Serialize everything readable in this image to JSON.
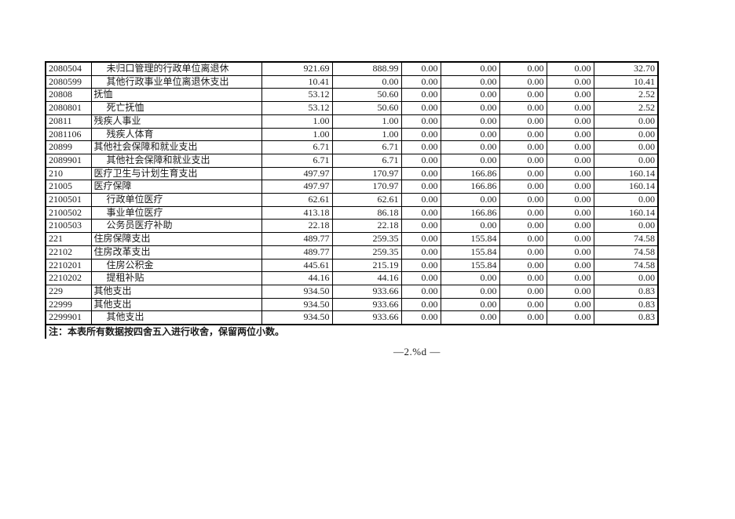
{
  "colors": {
    "background": "#ffffff",
    "border": "#000000",
    "text": "#1a1a1a"
  },
  "table": {
    "rows": [
      {
        "code": "2080504",
        "name": "未归口管理的行政单位离退休",
        "level": 1,
        "values": [
          "921.69",
          "888.99",
          "0.00",
          "0.00",
          "0.00",
          "0.00",
          "32.70"
        ]
      },
      {
        "code": "2080599",
        "name": "其他行政事业单位离退休支出",
        "level": 1,
        "values": [
          "10.41",
          "0.00",
          "0.00",
          "0.00",
          "0.00",
          "0.00",
          "10.41"
        ]
      },
      {
        "code": "20808",
        "name": "抚恤",
        "level": 0,
        "values": [
          "53.12",
          "50.60",
          "0.00",
          "0.00",
          "0.00",
          "0.00",
          "2.52"
        ]
      },
      {
        "code": "2080801",
        "name": "死亡抚恤",
        "level": 1,
        "values": [
          "53.12",
          "50.60",
          "0.00",
          "0.00",
          "0.00",
          "0.00",
          "2.52"
        ]
      },
      {
        "code": "20811",
        "name": "残疾人事业",
        "level": 0,
        "values": [
          "1.00",
          "1.00",
          "0.00",
          "0.00",
          "0.00",
          "0.00",
          "0.00"
        ]
      },
      {
        "code": "2081106",
        "name": "残疾人体育",
        "level": 1,
        "values": [
          "1.00",
          "1.00",
          "0.00",
          "0.00",
          "0.00",
          "0.00",
          "0.00"
        ]
      },
      {
        "code": "20899",
        "name": "其他社会保障和就业支出",
        "level": 0,
        "values": [
          "6.71",
          "6.71",
          "0.00",
          "0.00",
          "0.00",
          "0.00",
          "0.00"
        ]
      },
      {
        "code": "2089901",
        "name": "其他社会保障和就业支出",
        "level": 1,
        "values": [
          "6.71",
          "6.71",
          "0.00",
          "0.00",
          "0.00",
          "0.00",
          "0.00"
        ]
      },
      {
        "code": "210",
        "name": "医疗卫生与计划生育支出",
        "level": 0,
        "values": [
          "497.97",
          "170.97",
          "0.00",
          "166.86",
          "0.00",
          "0.00",
          "160.14"
        ]
      },
      {
        "code": "21005",
        "name": "医疗保障",
        "level": 0,
        "values": [
          "497.97",
          "170.97",
          "0.00",
          "166.86",
          "0.00",
          "0.00",
          "160.14"
        ]
      },
      {
        "code": "2100501",
        "name": "行政单位医疗",
        "level": 1,
        "values": [
          "62.61",
          "62.61",
          "0.00",
          "0.00",
          "0.00",
          "0.00",
          "0.00"
        ]
      },
      {
        "code": "2100502",
        "name": "事业单位医疗",
        "level": 1,
        "values": [
          "413.18",
          "86.18",
          "0.00",
          "166.86",
          "0.00",
          "0.00",
          "160.14"
        ]
      },
      {
        "code": "2100503",
        "name": "公务员医疗补助",
        "level": 1,
        "values": [
          "22.18",
          "22.18",
          "0.00",
          "0.00",
          "0.00",
          "0.00",
          "0.00"
        ]
      },
      {
        "code": "221",
        "name": "住房保障支出",
        "level": 0,
        "values": [
          "489.77",
          "259.35",
          "0.00",
          "155.84",
          "0.00",
          "0.00",
          "74.58"
        ]
      },
      {
        "code": "22102",
        "name": "住房改革支出",
        "level": 0,
        "values": [
          "489.77",
          "259.35",
          "0.00",
          "155.84",
          "0.00",
          "0.00",
          "74.58"
        ]
      },
      {
        "code": "2210201",
        "name": "住房公积金",
        "level": 1,
        "values": [
          "445.61",
          "215.19",
          "0.00",
          "155.84",
          "0.00",
          "0.00",
          "74.58"
        ]
      },
      {
        "code": "2210202",
        "name": "提租补贴",
        "level": 1,
        "values": [
          "44.16",
          "44.16",
          "0.00",
          "0.00",
          "0.00",
          "0.00",
          "0.00"
        ]
      },
      {
        "code": "229",
        "name": "其他支出",
        "level": 0,
        "values": [
          "934.50",
          "933.66",
          "0.00",
          "0.00",
          "0.00",
          "0.00",
          "0.83"
        ]
      },
      {
        "code": "22999",
        "name": "其他支出",
        "level": 0,
        "values": [
          "934.50",
          "933.66",
          "0.00",
          "0.00",
          "0.00",
          "0.00",
          "0.83"
        ]
      },
      {
        "code": "2299901",
        "name": "其他支出",
        "level": 1,
        "values": [
          "934.50",
          "933.66",
          "0.00",
          "0.00",
          "0.00",
          "0.00",
          "0.83"
        ]
      }
    ]
  },
  "footnote": "注：本表所有数据按四舍五入进行收舍，保留两位小数。",
  "footer": {
    "page_text": "—2.%d —"
  }
}
